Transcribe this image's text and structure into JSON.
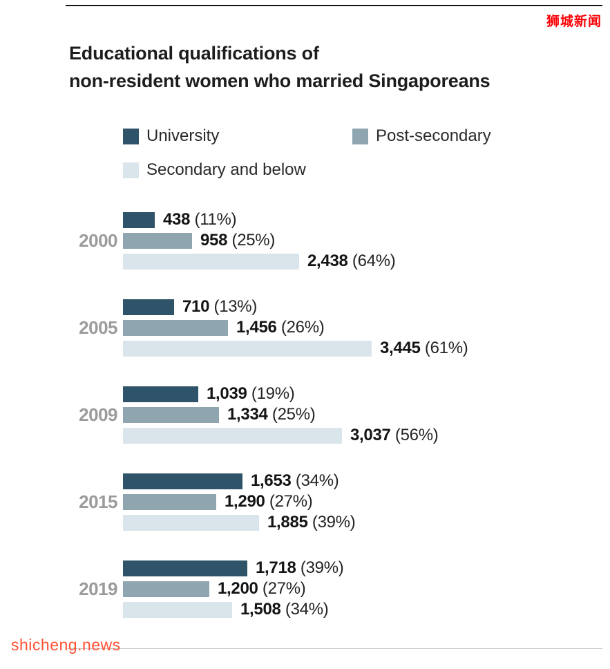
{
  "watermarks": {
    "top": "狮城新闻",
    "bottom": "shicheng.news"
  },
  "title": {
    "line1": "Educational qualifications of",
    "line2": "non-resident women who married Singaporeans"
  },
  "legend": {
    "items": [
      {
        "label": "University",
        "color": "#2f5368"
      },
      {
        "label": "Post-secondary",
        "color": "#8fa6b0"
      },
      {
        "label": "Secondary and below",
        "color": "#d9e5ea"
      }
    ]
  },
  "colors": {
    "watermark_red": "#fa0005",
    "watermark_orange": "#ff5233",
    "year_label_gray": "#9b9b9b",
    "bar_dark": "#2f5368",
    "bar_medium": "#8fa6b0",
    "bar_light": "#d9e5ea"
  },
  "chart_data": {
    "type": "bar",
    "orientation": "horizontal",
    "title": "Educational qualifications of non-resident women who married Singaporeans",
    "legend_position": "top",
    "grid": false,
    "categories": [
      "2000",
      "2005",
      "2009",
      "2015",
      "2019"
    ],
    "xmax": 3445,
    "series": [
      {
        "name": "University",
        "color": "#2f5368",
        "values": [
          438,
          710,
          1039,
          1653,
          1718
        ],
        "value_labels": [
          "438",
          "710",
          "1,039",
          "1,653",
          "1,718"
        ],
        "percent_labels": [
          "(11%)",
          "(13%)",
          "(19%)",
          "(34%)",
          "(39%)"
        ]
      },
      {
        "name": "Post-secondary",
        "color": "#8fa6b0",
        "values": [
          958,
          1456,
          1334,
          1290,
          1200
        ],
        "value_labels": [
          "958",
          "1,456",
          "1,334",
          "1,290",
          "1,200"
        ],
        "percent_labels": [
          "(25%)",
          "(26%)",
          "(25%)",
          "(27%)",
          "(27%)"
        ]
      },
      {
        "name": "Secondary and below",
        "color": "#d9e5ea",
        "values": [
          2438,
          3445,
          3037,
          1885,
          1508
        ],
        "value_labels": [
          "2,438",
          "3,445",
          "3,037",
          "1,885",
          "1,508"
        ],
        "percent_labels": [
          "(64%)",
          "(61%)",
          "(56%)",
          "(39%)",
          "(34%)"
        ]
      }
    ]
  }
}
